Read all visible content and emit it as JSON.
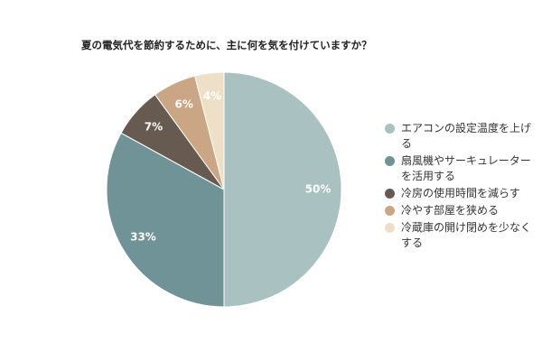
{
  "chart_data": {
    "type": "pie",
    "title": "夏の電気代を節約するために、主に何を気を付けていますか？",
    "categories": [
      "エアコンの設定温度を上げる",
      "扇風機やサーキュレーターを活用する",
      "冷房の使用時間を減らす",
      "冷やす部屋を狭める",
      "冷蔵庫の開け閉めを少なくする"
    ],
    "values": [
      50,
      33,
      7,
      6,
      4
    ],
    "value_labels": [
      "50%",
      "33%",
      "7%",
      "6%",
      "4%"
    ],
    "colors": [
      "#a9c1c1",
      "#6f9397",
      "#675b51",
      "#caa684",
      "#eee0c7"
    ],
    "legend": "right"
  }
}
